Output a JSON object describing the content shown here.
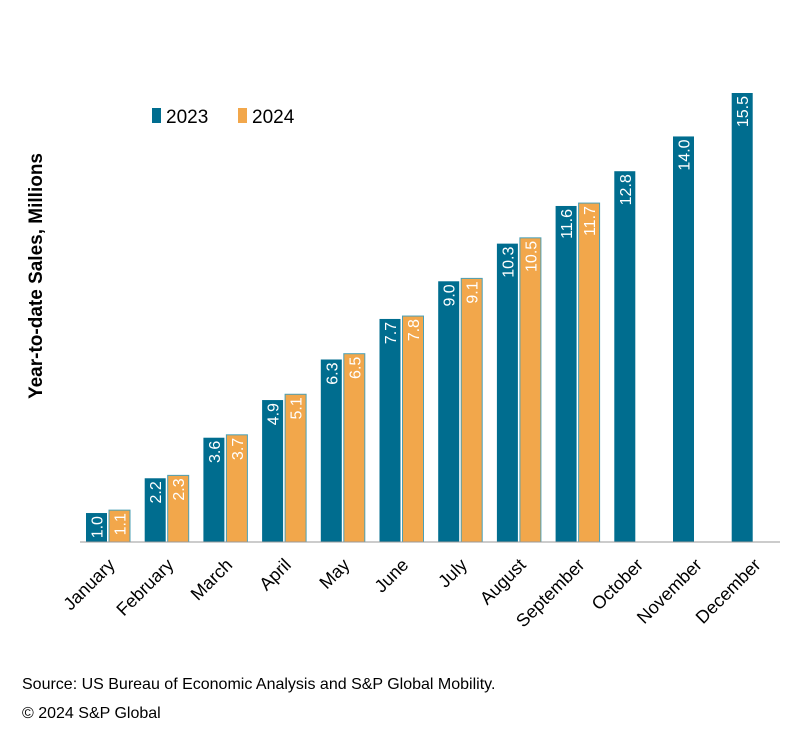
{
  "chart_data": {
    "type": "bar",
    "title": "",
    "xlabel": "",
    "ylabel": "Year-to-date Sales, Millions",
    "ylim": [
      0,
      16
    ],
    "grid": false,
    "legend_position": "top-left",
    "categories": [
      "January",
      "February",
      "March",
      "April",
      "May",
      "June",
      "July",
      "August",
      "September",
      "October",
      "November",
      "December"
    ],
    "series": [
      {
        "name": "2023",
        "color": "#006d8f",
        "values": [
          1.0,
          2.2,
          3.6,
          4.9,
          6.3,
          7.7,
          9.0,
          10.3,
          11.6,
          12.8,
          14.0,
          15.5
        ],
        "labels": [
          "1.0",
          "2.2",
          "3.6",
          "4.9",
          "6.3",
          "7.7",
          "9.0",
          "10.3",
          "11.6",
          "12.8",
          "14.0",
          "15.5"
        ]
      },
      {
        "name": "2024",
        "color": "#f2a74b",
        "values": [
          1.1,
          2.3,
          3.7,
          5.1,
          6.5,
          7.8,
          9.1,
          10.5,
          11.7,
          null,
          null,
          null
        ],
        "labels": [
          "1.1",
          "2.3",
          "3.7",
          "5.1",
          "6.5",
          "7.8",
          "9.1",
          "10.5",
          "11.7",
          null,
          null,
          null
        ]
      }
    ]
  },
  "footer": {
    "source": "Source: US Bureau of Economic Analysis and S&P Global Mobility.",
    "copyright": "© 2024 S&P Global"
  }
}
